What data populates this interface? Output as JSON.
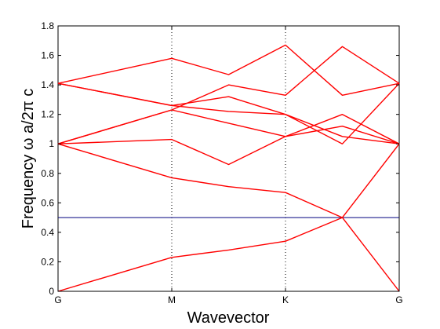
{
  "chart_data": {
    "type": "line",
    "title": "",
    "xlabel": "Wavevector",
    "ylabel": "Frequency ω a/2π c",
    "ylim": [
      0,
      1.8
    ],
    "yticks": [
      0,
      0.2,
      0.4,
      0.6,
      0.8,
      1,
      1.2,
      1.4,
      1.6,
      1.8
    ],
    "ytick_labels": [
      "0",
      "0.2",
      "0.4",
      "0.6",
      "0.8",
      "1",
      "1.2",
      "1.4",
      "1.6",
      "1.8"
    ],
    "x_points": [
      {
        "label": "G",
        "pos": 0
      },
      {
        "label": "M",
        "pos": 1
      },
      {
        "label": "K",
        "pos": 2
      },
      {
        "label": "G",
        "pos": 3
      }
    ],
    "xlim": [
      0,
      3
    ],
    "grid": "dotted vertical lines at M and K",
    "colors": {
      "bands": "#ff0000",
      "reference": "#00007f"
    },
    "reference_line": {
      "y": 0.5
    },
    "series": [
      {
        "x": [
          0,
          1,
          1.5,
          2,
          2.5,
          3
        ],
        "y": [
          0,
          0.23,
          0.28,
          0.34,
          0.5,
          0
        ]
      },
      {
        "x": [
          0,
          1,
          1.5,
          2,
          2.5,
          3
        ],
        "y": [
          1.0,
          0.77,
          0.71,
          0.67,
          0.5,
          1.0
        ]
      },
      {
        "x": [
          0,
          1,
          1.5,
          2,
          2.5,
          3
        ],
        "y": [
          1.0,
          1.03,
          0.86,
          1.05,
          1.2,
          1.0
        ]
      },
      {
        "x": [
          0,
          1,
          1.5,
          2,
          2.5,
          3
        ],
        "y": [
          1.0,
          1.23,
          1.14,
          1.05,
          1.12,
          1.0
        ]
      },
      {
        "x": [
          0,
          1,
          1.5,
          2,
          2.5,
          3
        ],
        "y": [
          1.41,
          1.26,
          1.22,
          1.2,
          1.0,
          1.41
        ]
      },
      {
        "x": [
          0,
          1,
          1.5,
          2,
          2.5,
          3
        ],
        "y": [
          1.41,
          1.58,
          1.47,
          1.67,
          1.33,
          1.41
        ]
      },
      {
        "x": [
          0,
          1,
          1.5,
          2,
          2.5,
          3
        ],
        "y": [
          1.0,
          1.23,
          1.4,
          1.33,
          1.66,
          1.41
        ]
      },
      {
        "x": [
          0,
          1,
          1.5,
          2,
          2.5,
          3
        ],
        "y": [
          1.41,
          1.26,
          1.32,
          1.2,
          1.05,
          1.0
        ]
      }
    ]
  }
}
